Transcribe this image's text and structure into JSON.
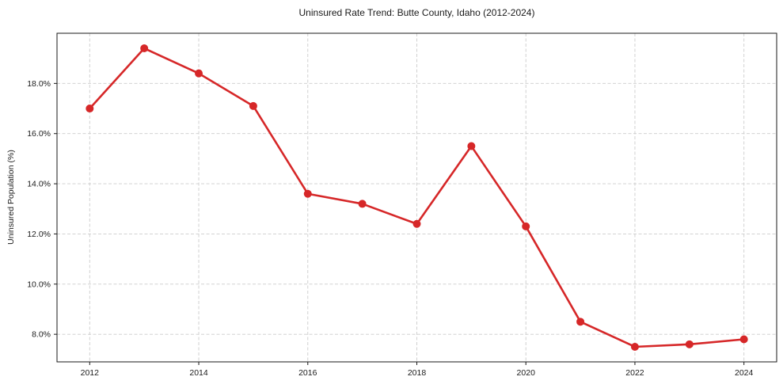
{
  "chart_data": {
    "type": "line",
    "title": "Uninsured Rate Trend: Butte County, Idaho (2012-2024)",
    "xlabel": "",
    "ylabel": "Uninsured Population (%)",
    "x": [
      2012,
      2013,
      2014,
      2015,
      2016,
      2017,
      2018,
      2019,
      2020,
      2021,
      2022,
      2023,
      2024
    ],
    "values": [
      17.0,
      19.4,
      18.4,
      17.1,
      13.6,
      13.2,
      12.4,
      15.5,
      12.3,
      8.5,
      7.5,
      7.6,
      7.8
    ],
    "xlim": [
      2011.4,
      2024.6
    ],
    "ylim": [
      6.9,
      20.0
    ],
    "x_ticks": [
      2012,
      2014,
      2016,
      2018,
      2020,
      2022,
      2024
    ],
    "x_tick_labels": [
      "2012",
      "2014",
      "2016",
      "2018",
      "2020",
      "2022",
      "2024"
    ],
    "y_ticks": [
      8,
      10,
      12,
      14,
      16,
      18
    ],
    "y_tick_labels": [
      "8.0%",
      "10.0%",
      "12.0%",
      "14.0%",
      "16.0%",
      "18.0%"
    ],
    "grid": true,
    "legend_position": "none",
    "line_color": "#d62728",
    "marker": "circle",
    "grid_color": "#cccccc",
    "axis_color": "#1a1a1a",
    "text_color": "#1a1a1a",
    "background_color": "#ffffff"
  }
}
